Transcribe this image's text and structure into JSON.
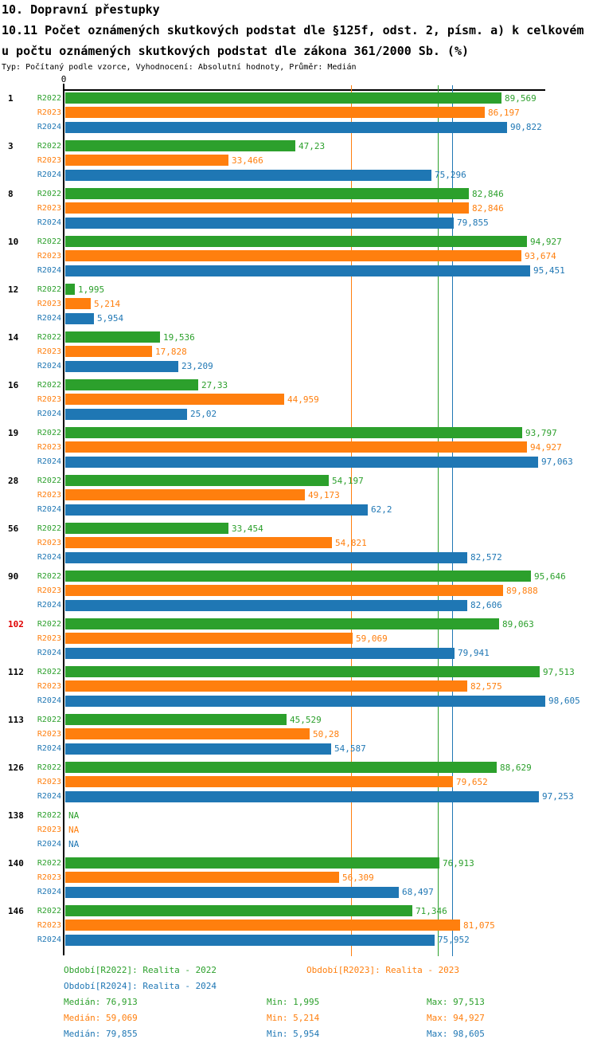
{
  "header": {
    "section_title": "10. Dopravní přestupky",
    "subtitle_line1": "10.11 Počet oznámených skutkových podstat dle §125f, odst. 2, písm. a) k celkovém",
    "subtitle_line2": "u počtu oznámených skutkových podstat dle zákona 361/2000 Sb. (%)",
    "meta": "Typ: Počítaný podle vzorce, Vyhodnocení: Absolutní hodnoty, Průměr: Medián"
  },
  "colors": {
    "R2022": "#2ca02c",
    "R2023": "#ff7f0e",
    "R2024": "#1f77b4",
    "highlight": "#e00000",
    "axis": "#000000"
  },
  "chart_data": {
    "type": "bar",
    "orientation": "horizontal",
    "title": "10.11 Počet oznámených skutkových podstat dle §125f, odst. 2, písm. a) k celkovému počtu oznámených skutkových podstat dle zákona 361/2000 Sb. (%)",
    "xlabel": "",
    "ylabel": "",
    "xlim": [
      0,
      100
    ],
    "grid": false,
    "x_axis": {
      "zero_label": "0"
    },
    "series": [
      "R2022",
      "R2023",
      "R2024"
    ],
    "categories": [
      "1",
      "3",
      "8",
      "10",
      "12",
      "14",
      "16",
      "19",
      "28",
      "56",
      "90",
      "102",
      "112",
      "113",
      "126",
      "138",
      "140",
      "146"
    ],
    "highlighted_categories": [
      "102"
    ],
    "groups": [
      {
        "category": "1",
        "highlight": false,
        "bars": [
          {
            "series": "R2022",
            "value": 89.569,
            "display": "89,569"
          },
          {
            "series": "R2023",
            "value": 86.197,
            "display": "86,197"
          },
          {
            "series": "R2024",
            "value": 90.822,
            "display": "90,822"
          }
        ]
      },
      {
        "category": "3",
        "highlight": false,
        "bars": [
          {
            "series": "R2022",
            "value": 47.23,
            "display": "47,23"
          },
          {
            "series": "R2023",
            "value": 33.466,
            "display": "33,466"
          },
          {
            "series": "R2024",
            "value": 75.296,
            "display": "75,296"
          }
        ]
      },
      {
        "category": "8",
        "highlight": false,
        "bars": [
          {
            "series": "R2022",
            "value": 82.846,
            "display": "82,846"
          },
          {
            "series": "R2023",
            "value": 82.846,
            "display": "82,846"
          },
          {
            "series": "R2024",
            "value": 79.855,
            "display": "79,855"
          }
        ]
      },
      {
        "category": "10",
        "highlight": false,
        "bars": [
          {
            "series": "R2022",
            "value": 94.927,
            "display": "94,927"
          },
          {
            "series": "R2023",
            "value": 93.674,
            "display": "93,674"
          },
          {
            "series": "R2024",
            "value": 95.451,
            "display": "95,451"
          }
        ]
      },
      {
        "category": "12",
        "highlight": false,
        "bars": [
          {
            "series": "R2022",
            "value": 1.995,
            "display": "1,995"
          },
          {
            "series": "R2023",
            "value": 5.214,
            "display": "5,214"
          },
          {
            "series": "R2024",
            "value": 5.954,
            "display": "5,954"
          }
        ]
      },
      {
        "category": "14",
        "highlight": false,
        "bars": [
          {
            "series": "R2022",
            "value": 19.536,
            "display": "19,536"
          },
          {
            "series": "R2023",
            "value": 17.828,
            "display": "17,828"
          },
          {
            "series": "R2024",
            "value": 23.209,
            "display": "23,209"
          }
        ]
      },
      {
        "category": "16",
        "highlight": false,
        "bars": [
          {
            "series": "R2022",
            "value": 27.33,
            "display": "27,33"
          },
          {
            "series": "R2023",
            "value": 44.959,
            "display": "44,959"
          },
          {
            "series": "R2024",
            "value": 25.02,
            "display": "25,02"
          }
        ]
      },
      {
        "category": "19",
        "highlight": false,
        "bars": [
          {
            "series": "R2022",
            "value": 93.797,
            "display": "93,797"
          },
          {
            "series": "R2023",
            "value": 94.927,
            "display": "94,927"
          },
          {
            "series": "R2024",
            "value": 97.063,
            "display": "97,063"
          }
        ]
      },
      {
        "category": "28",
        "highlight": false,
        "bars": [
          {
            "series": "R2022",
            "value": 54.197,
            "display": "54,197"
          },
          {
            "series": "R2023",
            "value": 49.173,
            "display": "49,173"
          },
          {
            "series": "R2024",
            "value": 62.2,
            "display": "62,2"
          }
        ]
      },
      {
        "category": "56",
        "highlight": false,
        "bars": [
          {
            "series": "R2022",
            "value": 33.454,
            "display": "33,454"
          },
          {
            "series": "R2023",
            "value": 54.821,
            "display": "54,821"
          },
          {
            "series": "R2024",
            "value": 82.572,
            "display": "82,572"
          }
        ]
      },
      {
        "category": "90",
        "highlight": false,
        "bars": [
          {
            "series": "R2022",
            "value": 95.646,
            "display": "95,646"
          },
          {
            "series": "R2023",
            "value": 89.888,
            "display": "89,888"
          },
          {
            "series": "R2024",
            "value": 82.606,
            "display": "82,606"
          }
        ]
      },
      {
        "category": "102",
        "highlight": true,
        "bars": [
          {
            "series": "R2022",
            "value": 89.063,
            "display": "89,063"
          },
          {
            "series": "R2023",
            "value": 59.069,
            "display": "59,069"
          },
          {
            "series": "R2024",
            "value": 79.941,
            "display": "79,941"
          }
        ]
      },
      {
        "category": "112",
        "highlight": false,
        "bars": [
          {
            "series": "R2022",
            "value": 97.513,
            "display": "97,513"
          },
          {
            "series": "R2023",
            "value": 82.575,
            "display": "82,575"
          },
          {
            "series": "R2024",
            "value": 98.605,
            "display": "98,605"
          }
        ]
      },
      {
        "category": "113",
        "highlight": false,
        "bars": [
          {
            "series": "R2022",
            "value": 45.529,
            "display": "45,529"
          },
          {
            "series": "R2023",
            "value": 50.28,
            "display": "50,28"
          },
          {
            "series": "R2024",
            "value": 54.587,
            "display": "54,587"
          }
        ]
      },
      {
        "category": "126",
        "highlight": false,
        "bars": [
          {
            "series": "R2022",
            "value": 88.629,
            "display": "88,629"
          },
          {
            "series": "R2023",
            "value": 79.652,
            "display": "79,652"
          },
          {
            "series": "R2024",
            "value": 97.253,
            "display": "97,253"
          }
        ]
      },
      {
        "category": "138",
        "highlight": false,
        "bars": [
          {
            "series": "R2022",
            "value": null,
            "display": "NA"
          },
          {
            "series": "R2023",
            "value": null,
            "display": "NA"
          },
          {
            "series": "R2024",
            "value": null,
            "display": "NA"
          }
        ]
      },
      {
        "category": "140",
        "highlight": false,
        "bars": [
          {
            "series": "R2022",
            "value": 76.913,
            "display": "76,913"
          },
          {
            "series": "R2023",
            "value": 56.309,
            "display": "56,309"
          },
          {
            "series": "R2024",
            "value": 68.497,
            "display": "68,497"
          }
        ]
      },
      {
        "category": "146",
        "highlight": false,
        "bars": [
          {
            "series": "R2022",
            "value": 71.346,
            "display": "71,346"
          },
          {
            "series": "R2023",
            "value": 81.075,
            "display": "81,075"
          },
          {
            "series": "R2024",
            "value": 75.952,
            "display": "75,952"
          }
        ]
      }
    ],
    "median_lines": [
      {
        "series": "R2023",
        "value": 59.069
      },
      {
        "series": "R2022",
        "value": 76.913
      },
      {
        "series": "R2024",
        "value": 79.855
      }
    ],
    "legend_position": "bottom"
  },
  "legend": {
    "items": [
      {
        "series": "R2022",
        "text": "Období[R2022]: Realita - 2022"
      },
      {
        "series": "R2023",
        "text": "Období[R2023]: Realita - 2023"
      },
      {
        "series": "R2024",
        "text": "Období[R2024]: Realita - 2024"
      }
    ]
  },
  "stats": {
    "rows": [
      {
        "series": "R2022",
        "median_text": "Medián: 76,913",
        "min_text": "Min: 1,995",
        "max_text": "Max: 97,513",
        "median_value": 76.913,
        "min_value": 1.995,
        "max_value": 97.513
      },
      {
        "series": "R2023",
        "median_text": "Medián: 59,069",
        "min_text": "Min: 5,214",
        "max_text": "Max: 94,927",
        "median_value": 59.069,
        "min_value": 5.214,
        "max_value": 94.927
      },
      {
        "series": "R2024",
        "median_text": "Medián: 79,855",
        "min_text": "Min: 5,954",
        "max_text": "Max: 98,605",
        "median_value": 79.855,
        "min_value": 5.954,
        "max_value": 98.605
      }
    ]
  }
}
